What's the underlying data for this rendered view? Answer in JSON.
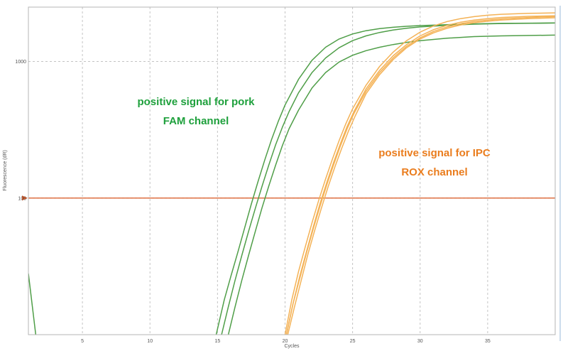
{
  "chart_data": {
    "type": "line",
    "xlabel": "Cycles",
    "ylabel": "Fluorescence (dR)",
    "xlim": [
      1,
      40
    ],
    "ylim": [
      10,
      2500
    ],
    "yscale": "log",
    "grid": true,
    "x_ticks": [
      5,
      10,
      15,
      20,
      25,
      30,
      35
    ],
    "y_ticks": [
      100,
      1000
    ],
    "threshold": {
      "value": 100,
      "color": "#d9541e"
    },
    "annotations": [
      {
        "lines": [
          "positive signal for pork",
          "FAM channel"
        ],
        "color": "#1ea03c"
      },
      {
        "lines": [
          "positive signal for IPC",
          "ROX channel"
        ],
        "color": "#ea7d1e"
      }
    ],
    "curve_groups": [
      {
        "color": "#4f9e48",
        "curves": [
          {
            "x": [
              1,
              1.6
            ],
            "y": [
              28,
              9
            ]
          },
          {
            "x": [
              14.9,
              15.5,
              16,
              16.5,
              17,
              17.5,
              18,
              18.5,
              19,
              19.5,
              20,
              21,
              22,
              23,
              24,
              25,
              26,
              27,
              28,
              29,
              30,
              32,
              34,
              36,
              40
            ],
            "y": [
              10,
              18,
              27,
              40,
              60,
              90,
              132,
              190,
              268,
              365,
              480,
              740,
              1020,
              1270,
              1460,
              1590,
              1680,
              1740,
              1780,
              1810,
              1830,
              1860,
              1885,
              1900,
              1915
            ]
          },
          {
            "x": [
              15.3,
              15.8,
              16.3,
              16.8,
              17.3,
              17.8,
              18.3,
              18.8,
              19.3,
              19.8,
              20.3,
              21,
              22,
              23,
              24,
              25,
              26,
              27,
              28,
              29,
              30,
              32,
              34,
              36,
              40
            ],
            "y": [
              10,
              16,
              25,
              38,
              57,
              84,
              122,
              175,
              245,
              330,
              430,
              590,
              830,
              1060,
              1260,
              1420,
              1540,
              1630,
              1700,
              1750,
              1790,
              1840,
              1875,
              1895,
              1912
            ]
          },
          {
            "x": [
              15.8,
              16.3,
              16.8,
              17.3,
              17.8,
              18.3,
              18.8,
              19.3,
              19.8,
              20.3,
              21,
              22,
              23,
              24,
              25,
              26,
              27,
              28,
              29,
              30,
              32,
              34,
              36,
              40
            ],
            "y": [
              10,
              16,
              25,
              38,
              57,
              85,
              123,
              174,
              242,
              322,
              440,
              640,
              830,
              990,
              1110,
              1200,
              1270,
              1330,
              1380,
              1420,
              1480,
              1520,
              1540,
              1560
            ]
          }
        ]
      },
      {
        "color": "#f4b256",
        "curves": [
          {
            "x": [
              20,
              20.5,
              21,
              21.5,
              22,
              22.5,
              23,
              23.5,
              24,
              24.5,
              25,
              26,
              27,
              28,
              29,
              30,
              31,
              32,
              33,
              34,
              35,
              36,
              38,
              40
            ],
            "y": [
              10,
              18,
              29,
              44,
              66,
              97,
              138,
              192,
              263,
              350,
              450,
              670,
              920,
              1170,
              1420,
              1640,
              1820,
              1960,
              2060,
              2130,
              2180,
              2215,
              2250,
              2270
            ]
          },
          {
            "x": [
              20.1,
              20.6,
              21.1,
              21.6,
              22.1,
              22.6,
              23.1,
              23.6,
              24.1,
              24.6,
              25.1,
              26,
              27,
              28,
              29,
              30,
              31,
              32,
              33,
              34,
              35,
              36,
              38,
              40
            ],
            "y": [
              10,
              17,
              27,
              41,
              62,
              92,
              131,
              183,
              250,
              335,
              430,
              630,
              860,
              1100,
              1330,
              1540,
              1710,
              1840,
              1940,
              2010,
              2060,
              2100,
              2140,
              2160
            ]
          },
          {
            "x": [
              20.1,
              20.6,
              21.1,
              21.6,
              22.1,
              22.6,
              23.1,
              23.6,
              24.1,
              24.6,
              25.1,
              26,
              27,
              28,
              29,
              30,
              31,
              32,
              33,
              34,
              35,
              36,
              38,
              40
            ],
            "y": [
              10,
              17,
              26,
              40,
              60,
              88,
              126,
              176,
              241,
              322,
              415,
              605,
              830,
              1060,
              1290,
              1490,
              1660,
              1790,
              1890,
              1960,
              2010,
              2050,
              2100,
              2130
            ]
          },
          {
            "x": [
              20.2,
              20.7,
              21.2,
              21.7,
              22.2,
              22.7,
              23.2,
              23.7,
              24.2,
              24.7,
              25.2,
              26,
              27,
              28,
              29,
              30,
              31,
              32,
              33,
              34,
              35,
              36,
              38,
              40
            ],
            "y": [
              10,
              16,
              25,
              39,
              58,
              85,
              122,
              170,
              232,
              310,
              400,
              580,
              800,
              1030,
              1260,
              1460,
              1620,
              1750,
              1850,
              1920,
              1970,
              2010,
              2060,
              2090
            ]
          }
        ]
      }
    ]
  }
}
